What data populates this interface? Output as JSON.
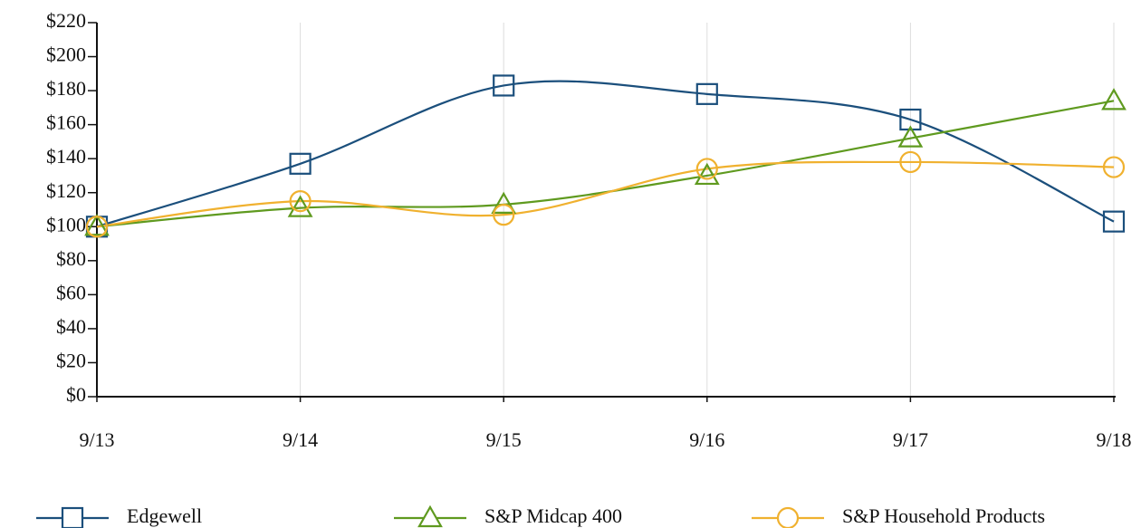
{
  "chart_data": {
    "type": "line",
    "categories": [
      "9/13",
      "9/14",
      "9/15",
      "9/16",
      "9/17",
      "9/18"
    ],
    "series": [
      {
        "name": "Edgewell",
        "color": "#1b4f7c",
        "marker": "square",
        "values": [
          100,
          137,
          183,
          178,
          163,
          103
        ]
      },
      {
        "name": "S&P Midcap 400",
        "color": "#5f9a1f",
        "marker": "triangle",
        "values": [
          100,
          111,
          113,
          130,
          152,
          174
        ]
      },
      {
        "name": "S&P Household Products",
        "color": "#f0b12f",
        "marker": "circle",
        "values": [
          100,
          115,
          107,
          134,
          138,
          135
        ]
      }
    ],
    "ylim": [
      0,
      220
    ],
    "yticks": [
      {
        "value": 0,
        "label": "$0"
      },
      {
        "value": 20,
        "label": "$20"
      },
      {
        "value": 40,
        "label": "$40"
      },
      {
        "value": 60,
        "label": "$60"
      },
      {
        "value": 80,
        "label": "$80"
      },
      {
        "value": 100,
        "label": "$100"
      },
      {
        "value": 120,
        "label": "$120"
      },
      {
        "value": 140,
        "label": "$140"
      },
      {
        "value": 160,
        "label": "$160"
      },
      {
        "value": 180,
        "label": "$180"
      },
      {
        "value": 200,
        "label": "$200"
      },
      {
        "value": 220,
        "label": "$220"
      }
    ],
    "grid": true,
    "legend": "bottom"
  }
}
